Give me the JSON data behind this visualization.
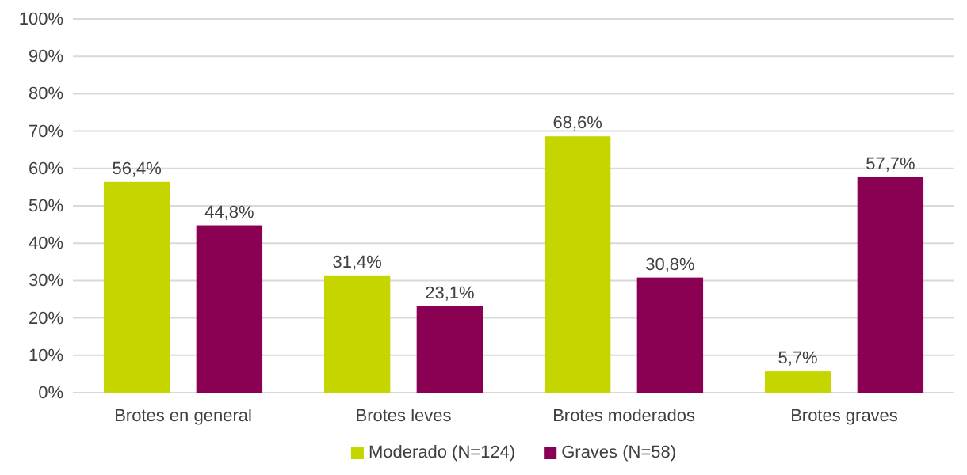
{
  "chart_data": {
    "type": "bar",
    "categories": [
      "Brotes en general",
      "Brotes leves",
      "Brotes moderados",
      "Brotes graves"
    ],
    "series": [
      {
        "name": "Moderado (N=124)",
        "color": "#c5d500",
        "values": [
          56.4,
          31.4,
          68.6,
          5.7
        ],
        "value_labels": [
          "56,4%",
          "31,4%",
          "68,6%",
          "5,7%"
        ]
      },
      {
        "name": "Graves (N=58)",
        "color": "#8a0052",
        "values": [
          44.8,
          23.1,
          30.8,
          57.7
        ],
        "value_labels": [
          "44,8%",
          "23,1%",
          "30,8%",
          "57,7%"
        ]
      }
    ],
    "ylim": [
      0,
      100
    ],
    "yticks": [
      {
        "value": 0,
        "label": "0%"
      },
      {
        "value": 10,
        "label": "10%"
      },
      {
        "value": 20,
        "label": "20%"
      },
      {
        "value": 30,
        "label": "30%"
      },
      {
        "value": 40,
        "label": "40%"
      },
      {
        "value": 50,
        "label": "50%"
      },
      {
        "value": 60,
        "label": "60%"
      },
      {
        "value": 70,
        "label": "70%"
      },
      {
        "value": 80,
        "label": "80%"
      },
      {
        "value": 90,
        "label": "90%"
      },
      {
        "value": 100,
        "label": "100%"
      }
    ],
    "grid": "y",
    "legend": "bottom"
  }
}
